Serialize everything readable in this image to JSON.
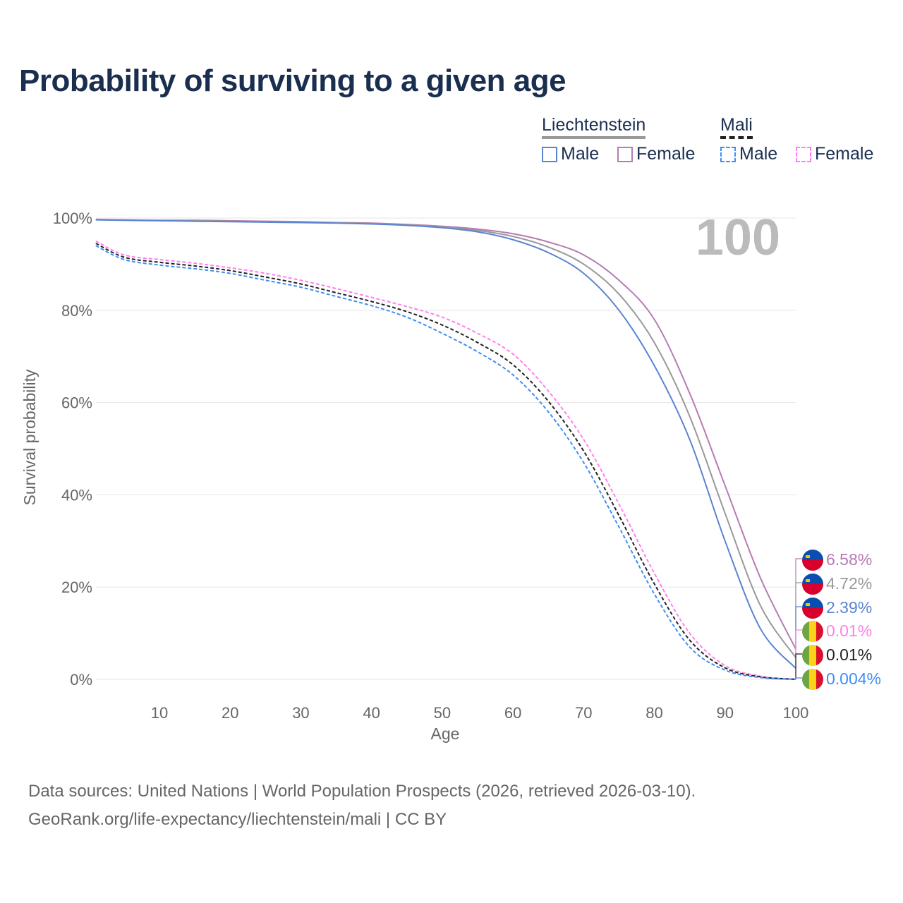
{
  "title": "Probability of surviving to a given age",
  "legend": {
    "groups": [
      {
        "country": "Liechtenstein",
        "line_color": "#999999",
        "items": [
          {
            "label": "Male",
            "color": "#5b84d0",
            "dashed": false
          },
          {
            "label": "Female",
            "color": "#b77bb4",
            "dashed": false
          }
        ]
      },
      {
        "country": "Mali",
        "line_color": "#222222",
        "items": [
          {
            "label": "Male",
            "color": "#3d8ef5",
            "dashed": true
          },
          {
            "label": "Female",
            "color": "#ff80ec",
            "dashed": true
          }
        ]
      }
    ]
  },
  "age_indicator": "100",
  "footer": {
    "line1": "Data sources: United Nations | World Population Prospects (2026, retrieved 2026-03-10).",
    "line2": "GeoRank.org/life-expectancy/liechtenstein/mali | CC BY"
  },
  "chart_data": {
    "type": "line",
    "title": "Probability of surviving to a given age",
    "xlabel": "Age",
    "ylabel": "Survival probability",
    "xlim": [
      1,
      100
    ],
    "ylim": [
      0,
      100
    ],
    "xticks": [
      10,
      20,
      30,
      40,
      50,
      60,
      70,
      80,
      90,
      100
    ],
    "yticks": [
      0,
      20,
      40,
      60,
      80,
      100
    ],
    "ytick_labels": [
      "0%",
      "20%",
      "40%",
      "60%",
      "80%",
      "100%"
    ],
    "grid": true,
    "x": [
      1,
      5,
      10,
      15,
      20,
      25,
      30,
      35,
      40,
      45,
      50,
      55,
      60,
      65,
      70,
      75,
      80,
      85,
      90,
      95,
      100
    ],
    "series": [
      {
        "name": "Liechtenstein Female",
        "flag": "liechtenstein",
        "color": "#b77bb4",
        "dashed": false,
        "end_label": "6.58%",
        "values": [
          99.7,
          99.6,
          99.5,
          99.5,
          99.4,
          99.3,
          99.2,
          99.0,
          98.9,
          98.6,
          98.2,
          97.6,
          96.6,
          94.8,
          92,
          86.5,
          78,
          62,
          42,
          22,
          6.58
        ]
      },
      {
        "name": "Liechtenstein Total",
        "flag": "liechtenstein",
        "color": "#999999",
        "dashed": false,
        "end_label": "4.72%",
        "values": [
          99.65,
          99.55,
          99.45,
          99.4,
          99.3,
          99.2,
          99.1,
          98.95,
          98.8,
          98.5,
          98.05,
          97.3,
          96,
          93.7,
          90,
          83.5,
          73,
          57,
          36,
          16,
          4.72
        ]
      },
      {
        "name": "Liechtenstein Male",
        "flag": "liechtenstein",
        "color": "#5b84d0",
        "dashed": false,
        "end_label": "2.39%",
        "values": [
          99.6,
          99.5,
          99.4,
          99.3,
          99.2,
          99.1,
          99.0,
          98.9,
          98.7,
          98.4,
          97.9,
          97.0,
          95.3,
          92.5,
          88,
          80,
          68,
          52,
          30,
          11,
          2.39
        ]
      },
      {
        "name": "Mali Female",
        "flag": "mali",
        "color": "#ff80ec",
        "dashed": true,
        "end_label": "0.01%",
        "values": [
          95,
          92,
          91,
          90.2,
          89.2,
          88,
          86.5,
          84.7,
          82.8,
          80.8,
          78.5,
          75,
          70.5,
          62.5,
          52,
          38,
          23,
          10,
          3,
          0.7,
          0.01
        ]
      },
      {
        "name": "Mali Total",
        "flag": "mali",
        "color": "#222222",
        "dashed": true,
        "end_label": "0.01%",
        "values": [
          94.5,
          91.5,
          90.4,
          89.6,
          88.6,
          87.2,
          85.7,
          83.8,
          81.9,
          79.7,
          76.8,
          73,
          68.2,
          60.3,
          49.5,
          35.5,
          20.7,
          8.5,
          2.5,
          0.55,
          0.01
        ]
      },
      {
        "name": "Mali Male",
        "flag": "mali",
        "color": "#3d8ef5",
        "dashed": true,
        "end_label": "0.004%",
        "values": [
          94,
          91,
          89.8,
          89,
          88,
          86.5,
          85,
          83,
          81,
          78.5,
          75,
          71,
          66,
          58,
          47,
          33,
          18.5,
          7,
          2,
          0.4,
          0.004
        ]
      }
    ]
  }
}
